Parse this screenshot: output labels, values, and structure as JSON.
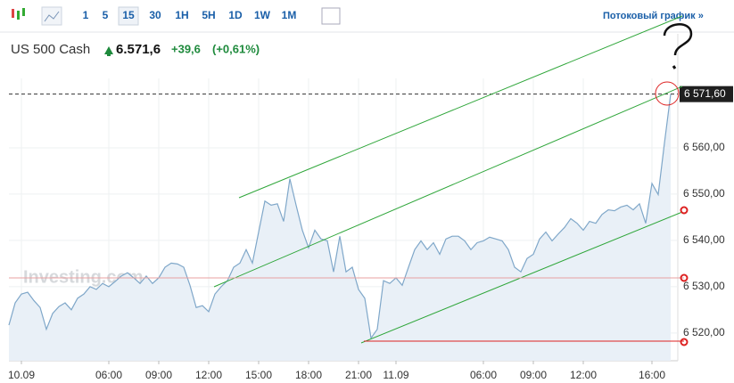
{
  "toolbar": {
    "intervals": [
      "1",
      "5",
      "15",
      "30",
      "1H",
      "5H",
      "1D",
      "1W",
      "1M"
    ],
    "active": "15",
    "stream_link": "Потоковый график »"
  },
  "header": {
    "instrument": "US 500 Cash",
    "price": "6.571,6",
    "change": "+39,6",
    "change_pct": "(+0,61%)"
  },
  "chart_data": {
    "type": "area",
    "watermark": "Investing.com",
    "color": "#7fa7c9",
    "fill": "#e9f0f7",
    "categories": [
      null,
      null,
      "10.09",
      null,
      null,
      null,
      null,
      null,
      null,
      null,
      null,
      null,
      null,
      null,
      null,
      null,
      "06:00",
      null,
      null,
      null,
      null,
      null,
      null,
      null,
      "09:00",
      null,
      null,
      null,
      null,
      null,
      null,
      null,
      "12:00",
      null,
      null,
      null,
      null,
      null,
      null,
      null,
      "15:00",
      null,
      null,
      null,
      null,
      null,
      null,
      null,
      "18:00",
      null,
      null,
      null,
      null,
      null,
      null,
      null,
      "21:00",
      null,
      null,
      null,
      null,
      null,
      "11.09",
      null,
      null,
      null,
      null,
      null,
      null,
      null,
      null,
      null,
      null,
      null,
      null,
      null,
      "06:00",
      null,
      null,
      null,
      null,
      null,
      null,
      null,
      "09:00",
      null,
      null,
      null,
      null,
      null,
      null,
      null,
      "12:00",
      null,
      null,
      null,
      null,
      null,
      null,
      null,
      null,
      null,
      null,
      "16:00",
      null,
      null,
      null
    ],
    "values": [
      6521.7,
      6526.5,
      6528.4,
      6528.8,
      6527,
      6525.5,
      6520.8,
      6524.2,
      6525.7,
      6526.5,
      6525,
      6527.5,
      6528.4,
      6530,
      6529.4,
      6530.7,
      6530,
      6531.1,
      6532.3,
      6533,
      6531.9,
      6530.7,
      6532.3,
      6530.7,
      6531.9,
      6534.2,
      6535.1,
      6534.9,
      6534.2,
      6530.3,
      6525.5,
      6525.9,
      6524.6,
      6528.4,
      6530,
      6531.3,
      6534.2,
      6535.1,
      6538,
      6535.1,
      6541.8,
      6548.5,
      6547.6,
      6547.9,
      6544.1,
      6553.3,
      6547.6,
      6542.2,
      6538.4,
      6542.2,
      6540.3,
      6539.9,
      6533.2,
      6540.9,
      6533.2,
      6534.2,
      6529.4,
      6527.5,
      6518.9,
      6520.8,
      6531.3,
      6530.7,
      6531.9,
      6530.3,
      6534.2,
      6538,
      6539.9,
      6538,
      6539.5,
      6537,
      6540.3,
      6540.9,
      6540.9,
      6539.9,
      6538,
      6539.5,
      6539.9,
      6540.7,
      6540.3,
      6539.9,
      6538,
      6534.2,
      6533.2,
      6536.1,
      6537,
      6540.3,
      6541.8,
      6539.9,
      6541.4,
      6542.8,
      6544.7,
      6543.7,
      6542.2,
      6544.1,
      6543.7,
      6545.6,
      6546.6,
      6546.4,
      6547.2,
      6547.6,
      6546.6,
      6547.9,
      6543.7,
      6552.3,
      6549.9,
      6561,
      6571.6
    ],
    "ylim": [
      6514,
      6575
    ],
    "yticks": [
      {
        "value": 6520,
        "label": "6 520,00"
      },
      {
        "value": 6530,
        "label": "6 530,00"
      },
      {
        "value": 6540,
        "label": "6 540,00"
      },
      {
        "value": 6550,
        "label": "6 550,00"
      },
      {
        "value": 6560,
        "label": "6 560,00"
      }
    ],
    "last_price": {
      "value": 6571.6,
      "label": "6 571,60"
    },
    "grid": true
  }
}
